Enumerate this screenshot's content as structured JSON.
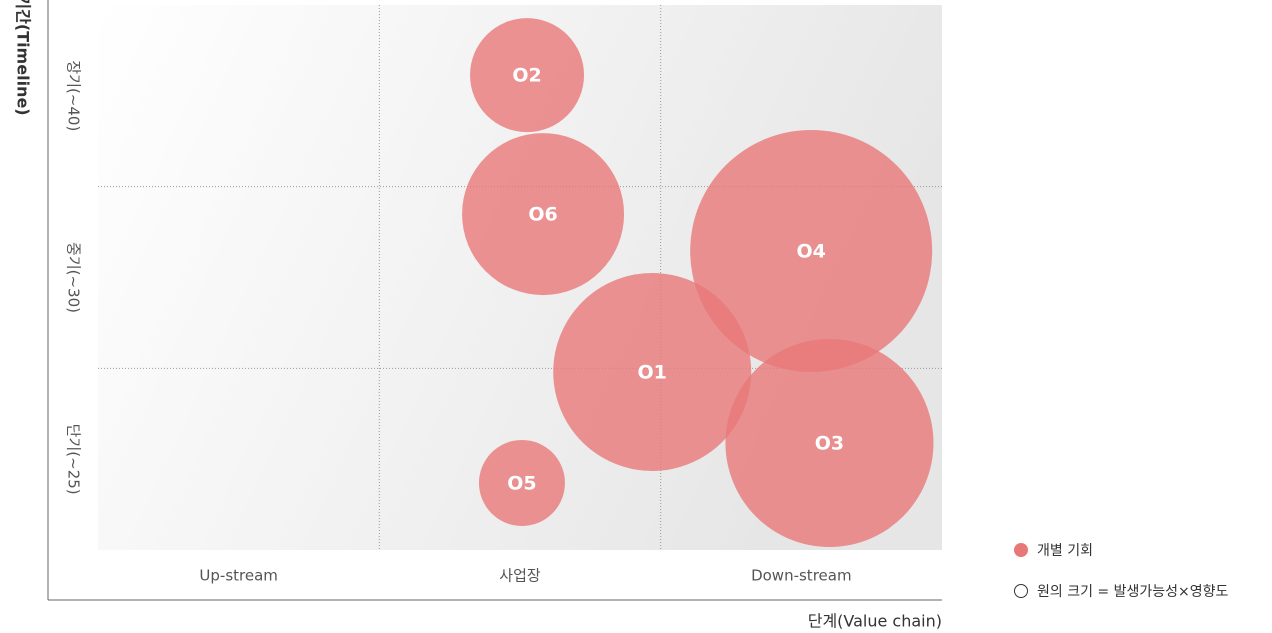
{
  "chart_data": {
    "type": "bubble",
    "x_label": "단계(Value chain)",
    "y_label": "기간(Timeline)",
    "categories": [
      "Up-stream",
      "사업장",
      "Down-stream"
    ],
    "y_categories": [
      "단기(~25)",
      "중기(~30)",
      "장기(~40)"
    ],
    "color": "#e87878",
    "points": [
      {
        "label": "O2",
        "x": 1.525,
        "y": 2.614,
        "size": 57
      },
      {
        "label": "O6",
        "x": 1.582,
        "y": 1.849,
        "size": 81
      },
      {
        "label": "O4",
        "x": 2.535,
        "y": 1.646,
        "size": 121
      },
      {
        "label": "O1",
        "x": 1.97,
        "y": 0.98,
        "size": 99
      },
      {
        "label": "O3",
        "x": 2.6,
        "y": 0.589,
        "size": 104
      },
      {
        "label": "O5",
        "x": 1.507,
        "y": 0.369,
        "size": 43
      }
    ],
    "legend": [
      "개별 기회",
      "원의 크기 = 발생가능성×영향도"
    ]
  }
}
